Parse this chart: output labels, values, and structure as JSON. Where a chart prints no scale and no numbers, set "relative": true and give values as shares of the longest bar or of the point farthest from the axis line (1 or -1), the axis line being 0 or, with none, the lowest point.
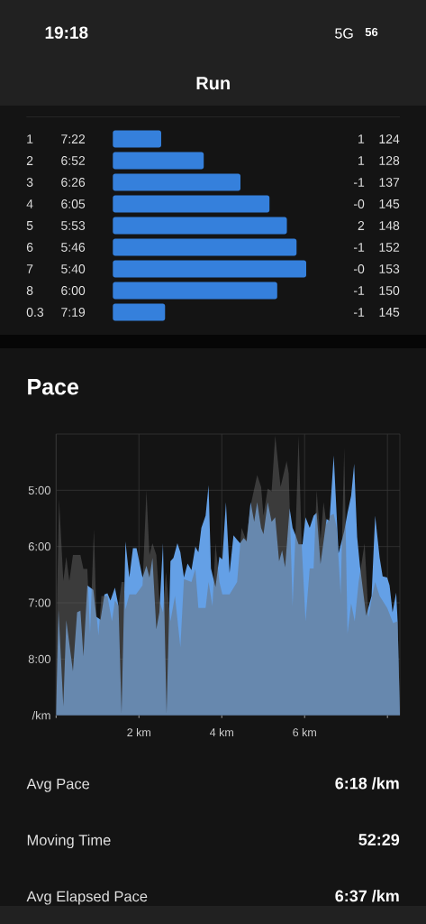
{
  "chart_data": [
    {
      "type": "other",
      "title": "Run",
      "annotations": [
        "19:18",
        "5G",
        "56"
      ]
    },
    {
      "type": "bar",
      "orientation": "horizontal",
      "relative": true,
      "categories": [
        "1",
        "2",
        "3",
        "4",
        "5",
        "6",
        "7",
        "8",
        "0.3"
      ],
      "values": [
        0.25,
        0.47,
        0.66,
        0.81,
        0.9,
        0.95,
        1,
        0.85,
        0.27
      ],
      "color": "#3580dc",
      "annotations": [
        "7:22",
        "6:52",
        "6:26",
        "6:05",
        "5:53",
        "5:46",
        "5:40",
        "6:00",
        "7:19",
        "1",
        "1",
        "-1",
        "-0",
        "2",
        "-1",
        "-0",
        "-1",
        "-1",
        "124",
        "128",
        "137",
        "145",
        "148",
        "152",
        "153",
        "150",
        "145"
      ]
    },
    {
      "type": "area",
      "title": "Pace",
      "ylabel": "/km",
      "series": [
        {
          "color": "#64a0e6",
          "x": [
            0.0,
            0.058,
            0.174,
            0.246,
            0.406,
            0.507,
            0.587,
            0.659,
            0.754,
            0.899,
            0.971,
            1.072,
            1.167,
            1.239,
            1.312,
            1.42,
            1.507,
            1.58,
            1.674,
            1.768,
            1.855,
            1.942,
            2.087,
            2.181,
            2.254,
            2.326,
            2.42,
            2.493,
            2.58,
            2.667,
            2.761,
            2.833,
            2.928,
            3.0,
            3.087,
            3.174,
            3.268,
            3.362,
            3.435,
            3.507,
            3.609,
            3.681,
            3.739,
            3.848,
            3.942,
            4.014,
            4.1,
            4.188,
            4.283,
            4.37,
            4.442,
            4.529,
            4.601,
            4.696,
            4.783,
            4.855,
            4.949,
            5.007,
            5.109,
            5.203,
            5.29,
            5.384,
            5.457,
            5.529,
            5.638,
            5.71,
            5.783,
            5.855,
            5.949,
            6.022,
            6.123,
            6.217,
            6.29,
            6.384,
            6.529,
            6.601,
            6.703,
            6.819,
            6.957,
            7.036,
            7.123,
            7.196,
            7.268,
            7.34,
            7.486,
            7.616,
            7.703,
            7.812,
            7.884,
            7.993,
            8.051,
            8.123,
            8.21,
            8.246,
            8.3
          ],
          "values": [
            8.97,
            7.12,
            8.84,
            7.31,
            8.22,
            7.17,
            7.14,
            7.95,
            6.69,
            6.77,
            7.25,
            7.3,
            6.85,
            6.83,
            6.96,
            6.73,
            7.06,
            8.97,
            5.91,
            6.55,
            6.03,
            6.03,
            6.55,
            6.34,
            6.55,
            6.2,
            7.47,
            7.17,
            5.94,
            8.97,
            6.26,
            6.2,
            5.94,
            6.1,
            6.55,
            6.3,
            6.42,
            6.0,
            6.1,
            5.67,
            5.45,
            4.91,
            6.39,
            6.72,
            6.18,
            6.23,
            5.21,
            6.47,
            5.8,
            5.88,
            5.94,
            5.85,
            5.91,
            5.21,
            5.56,
            5.21,
            5.67,
            5.78,
            5.21,
            5.56,
            5.48,
            6.26,
            6.07,
            6.37,
            5.32,
            5.67,
            5.8,
            5.96,
            5.96,
            5.48,
            5.67,
            5.45,
            5.4,
            6.31,
            5.51,
            5.54,
            4.38,
            6.12,
            5.72,
            5.4,
            5.1,
            4.53,
            5.83,
            6.37,
            7.23,
            6.88,
            5.45,
            6.2,
            6.53,
            6.55,
            6.69,
            7.17,
            6.82,
            7.33,
            8.97
          ]
        },
        {
          "color": "#6b6b6b",
          "x": [
            0.0,
            0.029,
            0.072,
            0.174,
            0.246,
            0.319,
            0.406,
            0.587,
            0.659,
            0.754,
            0.819,
            0.913,
            0.971,
            1.022,
            1.094,
            1.239,
            1.348,
            1.42,
            1.507,
            1.58,
            1.638,
            1.674,
            1.768,
            1.928,
            2.087,
            2.181,
            2.254,
            2.326,
            2.42,
            2.493,
            2.58,
            2.652,
            2.761,
            2.87,
            3.0,
            3.087,
            3.268,
            3.362,
            3.435,
            3.609,
            3.681,
            3.775,
            3.848,
            3.942,
            4.014,
            4.188,
            4.37,
            4.478,
            4.587,
            4.717,
            4.855,
            4.949,
            5.007,
            5.109,
            5.203,
            5.29,
            5.42,
            5.565,
            5.616,
            5.71,
            5.783,
            5.855,
            5.928,
            6.022,
            6.123,
            6.217,
            6.29,
            6.384,
            6.457,
            6.529,
            6.616,
            6.703,
            6.775,
            6.87,
            6.957,
            7.036,
            7.123,
            7.21,
            7.304,
            7.449,
            7.543,
            7.63,
            7.703,
            7.812,
            7.993,
            8.138,
            8.246,
            8.3
          ],
          "values": [
            8.97,
            6.74,
            5.16,
            6.61,
            6.18,
            6.61,
            6.15,
            6.15,
            6.4,
            6.4,
            7.55,
            5.69,
            7.17,
            7.58,
            6.88,
            6.88,
            7.33,
            6.96,
            7.06,
            6.63,
            6.63,
            7.12,
            6.85,
            6.85,
            6.69,
            5.0,
            6.15,
            5.94,
            6.15,
            6.96,
            7.17,
            6.45,
            7.33,
            6.88,
            7.79,
            6.58,
            6.63,
            6.4,
            7.09,
            7.09,
            6.63,
            7.06,
            5.94,
            6.63,
            6.85,
            6.85,
            6.63,
            5.67,
            5.88,
            5.2,
            4.73,
            4.94,
            5.45,
            4.97,
            5.02,
            4.03,
            4.94,
            4.48,
            4.7,
            7.06,
            5.72,
            4.03,
            5.94,
            7.33,
            6.39,
            6.39,
            5.0,
            5.88,
            5.21,
            5.61,
            5.45,
            5.42,
            5.67,
            6.85,
            4.24,
            7.55,
            7.01,
            7.33,
            6.63,
            5.94,
            7.26,
            6.88,
            6.63,
            6.88,
            7.09,
            7.36,
            7.33,
            8.97
          ]
        }
      ],
      "xlim": [
        0,
        8.3
      ],
      "ylim": [
        9,
        4
      ],
      "xticks": [
        {
          "value": 0,
          "label": null
        },
        {
          "value": 2,
          "label": "2 km"
        },
        {
          "value": 4,
          "label": "4 km"
        },
        {
          "value": 6,
          "label": "6 km"
        },
        {
          "value": 8,
          "label": null
        }
      ],
      "yticks": [
        {
          "value": 5,
          "label": "5:00"
        },
        {
          "value": 6,
          "label": "6:00"
        },
        {
          "value": 7,
          "label": "7:00"
        },
        {
          "value": 8,
          "label": "8:00"
        }
      ],
      "grid": true
    },
    {
      "type": "other",
      "annotations": [
        "Avg Pace",
        "6:18 /km",
        "Moving Time",
        "52:29",
        "Avg Elapsed Pace",
        "6:37 /km"
      ]
    }
  ]
}
